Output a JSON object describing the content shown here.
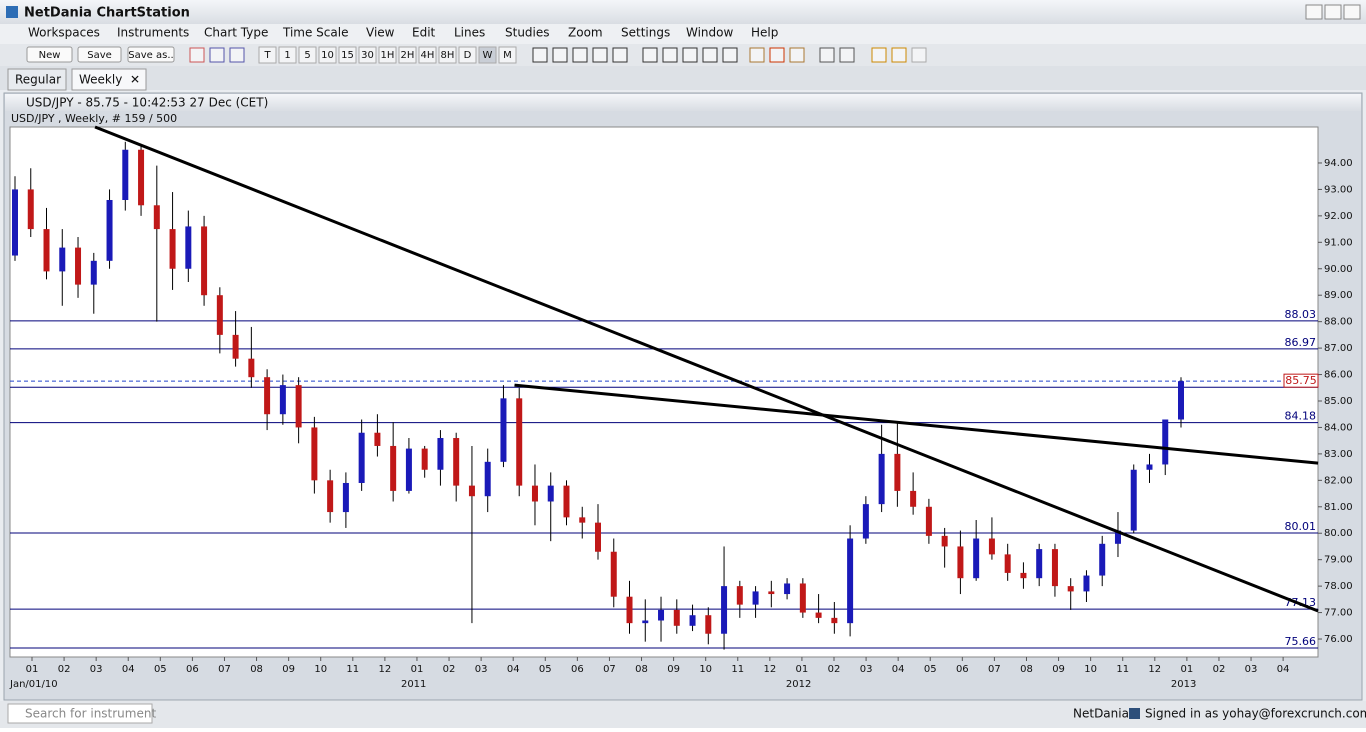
{
  "ui": {
    "app_title": "NetDania ChartStation",
    "menu": [
      "Workspaces",
      "Instruments",
      "Chart Type",
      "Time Scale",
      "View",
      "Edit",
      "Lines",
      "Studies",
      "Zoom",
      "Settings",
      "Window",
      "Help"
    ],
    "buttons": [
      "New",
      "Save",
      "Save as.."
    ],
    "periods": [
      "T",
      "1",
      "5",
      "10",
      "15",
      "30",
      "1H",
      "2H",
      "4H",
      "8H",
      "D",
      "W",
      "M"
    ],
    "tabs": [
      "Regular",
      "Weekly"
    ],
    "chart_header": "USD/JPY - 85.75 - 10:42:53 27 Dec (CET)",
    "chart_subheader": "USD/JPY , Weekly, # 159 / 500",
    "search_placeholder": "Search for instrument",
    "brand": "NetDania",
    "signed_in": "Signed in as yohay@forexcrunch.com"
  },
  "chart_data": {
    "type": "candlestick",
    "up_color": "#1a1ab8",
    "down_color": "#c01818",
    "level_color": "#00007a",
    "trend_color": "#000000",
    "ylim": [
      75.32,
      95.36
    ],
    "yticks": [
      {
        "value": 76,
        "label": "76.00"
      },
      {
        "value": 77,
        "label": "77.00"
      },
      {
        "value": 78,
        "label": "78.00"
      },
      {
        "value": 79,
        "label": "79.00"
      },
      {
        "value": 80,
        "label": "80.00"
      },
      {
        "value": 81,
        "label": "81.00"
      },
      {
        "value": 82,
        "label": "82.00"
      },
      {
        "value": 83,
        "label": "83.00"
      },
      {
        "value": 84,
        "label": "84.00"
      },
      {
        "value": 85,
        "label": "85.00"
      },
      {
        "value": 86,
        "label": "86.00"
      },
      {
        "value": 87,
        "label": "87.00"
      },
      {
        "value": 88,
        "label": "88.00"
      },
      {
        "value": 89,
        "label": "89.00"
      },
      {
        "value": 90,
        "label": "90.00"
      },
      {
        "value": 91,
        "label": "91.00"
      },
      {
        "value": 92,
        "label": "92.00"
      },
      {
        "value": 93,
        "label": "93.00"
      },
      {
        "value": 94,
        "label": "94.00"
      }
    ],
    "month_labels": [
      "01",
      "02",
      "03",
      "04",
      "05",
      "06",
      "07",
      "08",
      "09",
      "10",
      "11",
      "12",
      "01",
      "02",
      "03",
      "04",
      "05",
      "06",
      "07",
      "08",
      "09",
      "10",
      "11",
      "12",
      "01",
      "02",
      "03",
      "04",
      "05",
      "06",
      "07",
      "08",
      "09",
      "10",
      "11",
      "12",
      "01",
      "02",
      "03",
      "04"
    ],
    "year_labels": [
      {
        "label": "Jan/01/10",
        "month_index": 0
      },
      {
        "label": "2011",
        "month_index": 12
      },
      {
        "label": "2012",
        "month_index": 24
      },
      {
        "label": "2013",
        "month_index": 36
      }
    ],
    "levels": [
      88.03,
      86.97,
      85.52,
      84.18,
      80.01,
      77.13,
      75.66
    ],
    "last_price": 85.75,
    "trendlines": [
      {
        "from": {
          "index": 5.08,
          "price": 95.36
        },
        "to": {
          "index": 82.7,
          "price": 77.06
        }
      },
      {
        "from": {
          "index": 31.7,
          "price": 85.6
        },
        "to": {
          "index": 82.7,
          "price": 82.65
        }
      }
    ],
    "open": [
      90.5,
      93.0,
      91.5,
      89.9,
      90.8,
      89.4,
      90.3,
      92.6,
      94.5,
      92.4,
      91.5,
      90.0,
      91.6,
      89.0,
      87.5,
      86.6,
      85.9,
      84.5,
      85.6,
      84.0,
      82.0,
      80.8,
      81.9,
      83.8,
      83.3,
      81.6,
      83.2,
      82.4,
      83.6,
      81.8,
      81.4,
      82.7,
      85.1,
      81.8,
      81.2,
      81.8,
      80.6,
      80.4,
      79.3,
      77.6,
      76.6,
      76.7,
      77.1,
      76.5,
      76.9,
      76.2,
      78.0,
      77.3,
      77.8,
      77.7,
      78.1,
      77.0,
      76.8,
      76.6,
      79.8,
      81.1,
      83.0,
      81.6,
      81.0,
      79.9,
      79.5,
      78.3,
      79.8,
      79.2,
      78.5,
      78.3,
      79.4,
      78.0,
      77.8,
      78.4,
      79.6,
      80.1,
      82.4,
      82.6,
      84.3
    ],
    "high": [
      93.5,
      93.8,
      92.3,
      91.5,
      91.2,
      90.6,
      93.0,
      94.8,
      94.7,
      93.9,
      92.9,
      92.2,
      92.0,
      89.3,
      88.4,
      87.8,
      86.2,
      86.0,
      85.9,
      84.4,
      82.4,
      82.3,
      84.3,
      84.5,
      84.2,
      83.6,
      83.3,
      83.9,
      83.8,
      83.3,
      83.2,
      85.6,
      85.5,
      82.6,
      82.3,
      82.0,
      81.0,
      81.1,
      79.8,
      78.2,
      77.5,
      77.6,
      77.5,
      77.3,
      77.2,
      79.5,
      78.2,
      78.0,
      78.2,
      78.3,
      78.3,
      77.7,
      77.4,
      80.3,
      81.4,
      84.1,
      84.2,
      82.3,
      81.3,
      80.2,
      80.1,
      80.5,
      80.6,
      79.6,
      78.9,
      79.6,
      79.6,
      78.3,
      78.6,
      79.9,
      80.8,
      82.6,
      83.0,
      84.3,
      85.9
    ],
    "low": [
      90.3,
      91.2,
      89.6,
      88.6,
      88.9,
      88.3,
      90.0,
      92.2,
      92.0,
      88.0,
      89.2,
      89.5,
      88.6,
      86.8,
      86.3,
      85.5,
      83.9,
      84.1,
      83.4,
      81.5,
      80.4,
      80.2,
      81.6,
      82.9,
      81.2,
      81.5,
      82.1,
      81.8,
      81.2,
      76.6,
      80.8,
      82.5,
      81.4,
      80.3,
      79.7,
      80.3,
      79.8,
      79.0,
      77.2,
      76.2,
      75.9,
      75.9,
      76.2,
      76.3,
      75.8,
      75.6,
      76.8,
      76.8,
      77.2,
      77.5,
      76.8,
      76.6,
      76.2,
      76.1,
      79.6,
      80.8,
      81.0,
      80.7,
      79.6,
      78.7,
      77.7,
      78.2,
      79.0,
      78.2,
      77.9,
      78.0,
      77.6,
      77.1,
      77.4,
      78.0,
      79.1,
      80.0,
      81.9,
      82.2,
      84.0
    ],
    "close": [
      93.0,
      91.5,
      89.9,
      90.8,
      89.4,
      90.3,
      92.6,
      94.5,
      92.4,
      91.5,
      90.0,
      91.6,
      89.0,
      87.5,
      86.6,
      85.9,
      84.5,
      85.6,
      84.0,
      82.0,
      80.8,
      81.9,
      83.8,
      83.3,
      81.6,
      83.2,
      82.4,
      83.6,
      81.8,
      81.4,
      82.7,
      85.1,
      81.8,
      81.2,
      81.8,
      80.6,
      80.4,
      79.3,
      77.6,
      76.6,
      76.7,
      77.1,
      76.5,
      76.9,
      76.2,
      78.0,
      77.3,
      77.8,
      77.7,
      78.1,
      77.0,
      76.8,
      76.6,
      79.8,
      81.1,
      83.0,
      81.6,
      81.0,
      79.9,
      79.5,
      78.3,
      79.8,
      79.2,
      78.5,
      78.3,
      79.4,
      78.0,
      77.8,
      78.4,
      79.6,
      80.1,
      82.4,
      82.6,
      84.3,
      85.75
    ]
  }
}
